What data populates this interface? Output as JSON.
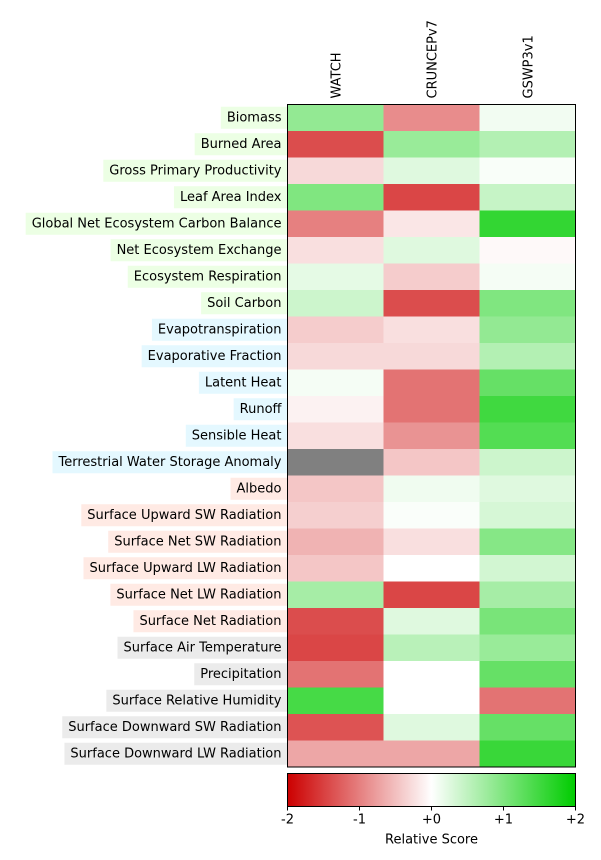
{
  "chart_data": {
    "type": "heatmap",
    "columns": [
      "WATCH",
      "CRUNCEPv7",
      "GSWP3v1"
    ],
    "rows": [
      "Biomass",
      "Burned Area",
      "Gross Primary Productivity",
      "Leaf Area Index",
      "Global Net Ecosystem Carbon Balance",
      "Net Ecosystem Exchange",
      "Ecosystem Respiration",
      "Soil Carbon",
      "Evapotranspiration",
      "Evaporative Fraction",
      "Latent Heat",
      "Runoff",
      "Sensible Heat",
      "Terrestrial Water Storage Anomaly",
      "Albedo",
      "Surface Upward SW Radiation",
      "Surface Net SW Radiation",
      "Surface Upward LW Radiation",
      "Surface Net LW Radiation",
      "Surface Net Radiation",
      "Surface Air Temperature",
      "Precipitation",
      "Surface Relative Humidity",
      "Surface Downward SW Radiation",
      "Surface Downward LW Radiation"
    ],
    "row_groups": [
      "ecosystem",
      "ecosystem",
      "ecosystem",
      "ecosystem",
      "ecosystem",
      "ecosystem",
      "ecosystem",
      "ecosystem",
      "hydrology",
      "hydrology",
      "hydrology",
      "hydrology",
      "hydrology",
      "hydrology",
      "radiation",
      "radiation",
      "radiation",
      "radiation",
      "radiation",
      "radiation",
      "forcing",
      "forcing",
      "forcing",
      "forcing",
      "forcing"
    ],
    "group_colors": {
      "ecosystem": "#ecffe4",
      "hydrology": "#e4f8ff",
      "radiation": "#ffeae4",
      "forcing": "#ebebeb"
    },
    "values": [
      [
        0.85,
        -0.9,
        0.1
      ],
      [
        -1.4,
        0.8,
        0.6
      ],
      [
        -0.3,
        0.25,
        0.05
      ],
      [
        1.0,
        -1.45,
        0.45
      ],
      [
        -1.0,
        -0.2,
        1.6
      ],
      [
        -0.25,
        0.25,
        -0.05
      ],
      [
        0.2,
        -0.4,
        0.08
      ],
      [
        0.4,
        -1.4,
        1.0
      ],
      [
        -0.4,
        -0.25,
        0.85
      ],
      [
        -0.3,
        -0.3,
        0.6
      ],
      [
        0.08,
        -1.1,
        1.2
      ],
      [
        -0.1,
        -1.1,
        1.5
      ],
      [
        -0.25,
        -0.85,
        1.35
      ],
      [
        null,
        -0.45,
        0.4
      ],
      [
        -0.45,
        0.12,
        0.25
      ],
      [
        -0.38,
        0.04,
        0.32
      ],
      [
        -0.6,
        -0.25,
        0.95
      ],
      [
        -0.45,
        0.0,
        0.35
      ],
      [
        0.7,
        -1.45,
        0.7
      ],
      [
        -1.4,
        0.25,
        1.05
      ],
      [
        -1.45,
        0.55,
        0.8
      ],
      [
        -1.1,
        0.0,
        1.2
      ],
      [
        1.45,
        0.0,
        -1.1
      ],
      [
        -1.35,
        0.25,
        1.2
      ],
      [
        -0.7,
        -0.7,
        1.55
      ]
    ],
    "missing_color": "#808080",
    "colorbar": {
      "label": "Relative Score",
      "min": -2,
      "max": 2,
      "ticks": [
        -2,
        -1,
        0,
        1,
        2
      ],
      "tick_labels": [
        "-2",
        "-1",
        "+0",
        "+1",
        "+2"
      ],
      "low_color": "#cc0000",
      "mid_color": "#ffffff",
      "high_color": "#00cc00"
    }
  }
}
